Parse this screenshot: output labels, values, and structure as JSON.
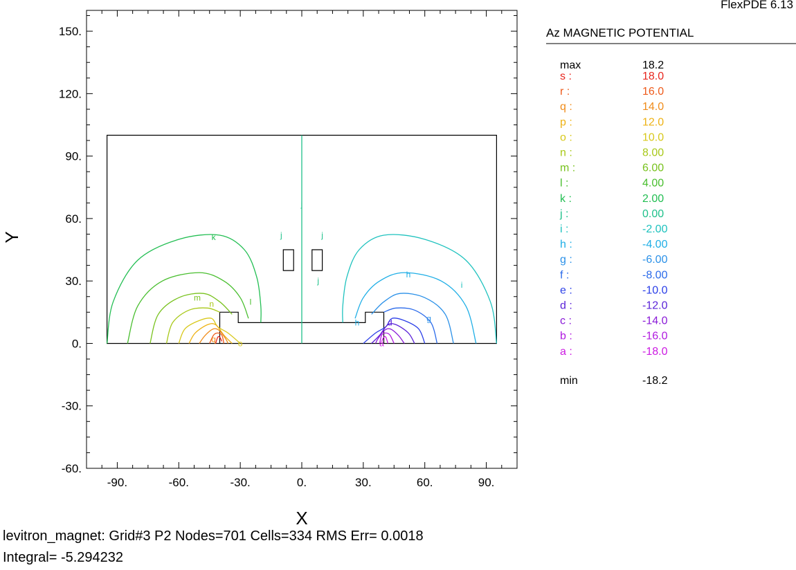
{
  "header": {
    "app_version": "FlexPDE 6.13"
  },
  "legend": {
    "title": "Az MAGNETIC POTENTIAL",
    "max_label": "max",
    "max_value": "18.2",
    "min_label": "min",
    "min_value": "-18.2",
    "entries": [
      {
        "key": "s",
        "value": "18.0",
        "color": "#e8261e"
      },
      {
        "key": "r",
        "value": "16.0",
        "color": "#ee5a1a"
      },
      {
        "key": "q",
        "value": "14.0",
        "color": "#f08c1a"
      },
      {
        "key": "p",
        "value": "12.0",
        "color": "#eeb214"
      },
      {
        "key": "o",
        "value": "10.0",
        "color": "#d8c81a"
      },
      {
        "key": "n",
        "value": "8.00",
        "color": "#a8c818"
      },
      {
        "key": "m",
        "value": "6.00",
        "color": "#78c21e"
      },
      {
        "key": "l",
        "value": "4.00",
        "color": "#48be2e"
      },
      {
        "key": "k",
        "value": "2.00",
        "color": "#22be52"
      },
      {
        "key": "j",
        "value": "0.00",
        "color": "#1ec08a"
      },
      {
        "key": "i",
        "value": "-2.00",
        "color": "#1ec2be"
      },
      {
        "key": "h",
        "value": "-4.00",
        "color": "#1eaee6"
      },
      {
        "key": "g",
        "value": "-6.00",
        "color": "#2a90e8"
      },
      {
        "key": "f",
        "value": "-8.00",
        "color": "#2a6aea"
      },
      {
        "key": "e",
        "value": "-10.0",
        "color": "#2a3ee8"
      },
      {
        "key": "d",
        "value": "-12.0",
        "color": "#5a22d8"
      },
      {
        "key": "c",
        "value": "-14.0",
        "color": "#8a1ad8"
      },
      {
        "key": "b",
        "value": "-16.0",
        "color": "#b01ae0"
      },
      {
        "key": "a",
        "value": "-18.0",
        "color": "#cc1ae2"
      }
    ]
  },
  "footer": {
    "line1": "levitron_magnet:  Grid#3  P2  Nodes=701 Cells=334 RMS Err= 0.0018",
    "line2": "Integral= -5.294232"
  },
  "chart_data": {
    "type": "contour",
    "title": "Az MAGNETIC POTENTIAL",
    "xlabel": "X",
    "ylabel": "Y",
    "xlim": [
      -105,
      105
    ],
    "ylim": [
      -60,
      160
    ],
    "x_ticks": [
      "-90.",
      "-60.",
      "-30.",
      "0.",
      "30.",
      "60.",
      "90."
    ],
    "y_ticks": [
      "150.",
      "120.",
      "90.",
      "60.",
      "30.",
      "0.",
      "-30.",
      "-60."
    ],
    "x_tick_values": [
      -90,
      -60,
      -30,
      0,
      30,
      60,
      90
    ],
    "y_tick_values": [
      150,
      120,
      90,
      60,
      30,
      0,
      -30,
      -60
    ],
    "domain_outline": [
      [
        -95,
        0
      ],
      [
        95,
        0
      ],
      [
        95,
        100
      ],
      [
        -95,
        100
      ]
    ],
    "magnet_outline": [
      [
        -40,
        0
      ],
      [
        -40,
        15
      ],
      [
        -31,
        15
      ],
      [
        -31,
        10
      ],
      [
        31,
        10
      ],
      [
        31,
        15
      ],
      [
        40,
        15
      ],
      [
        40,
        0
      ]
    ],
    "coils": [
      {
        "x": [
          -9,
          -4
        ],
        "y": [
          35,
          45
        ]
      },
      {
        "x": [
          5,
          10
        ],
        "y": [
          35,
          45
        ]
      }
    ],
    "contours": [
      {
        "key": "k",
        "value": 2.0,
        "color": "#22be52",
        "points": [
          [
            -95,
            0
          ],
          [
            -92,
            20
          ],
          [
            -80,
            40
          ],
          [
            -60,
            50
          ],
          [
            -40,
            52
          ],
          [
            -28,
            45
          ],
          [
            -22,
            32
          ],
          [
            -20,
            18
          ],
          [
            -20,
            10
          ]
        ]
      },
      {
        "key": "l",
        "value": 4.0,
        "color": "#48be2e",
        "points": [
          [
            -85,
            0
          ],
          [
            -80,
            18
          ],
          [
            -68,
            30
          ],
          [
            -50,
            34
          ],
          [
            -38,
            30
          ],
          [
            -30,
            22
          ],
          [
            -26,
            12
          ]
        ]
      },
      {
        "key": "m",
        "value": 6.0,
        "color": "#78c21e",
        "points": [
          [
            -74,
            0
          ],
          [
            -70,
            14
          ],
          [
            -60,
            22
          ],
          [
            -48,
            24
          ],
          [
            -40,
            20
          ],
          [
            -34,
            14
          ]
        ]
      },
      {
        "key": "n",
        "value": 8.0,
        "color": "#a8c818",
        "points": [
          [
            -66,
            0
          ],
          [
            -63,
            10
          ],
          [
            -55,
            16
          ],
          [
            -46,
            17
          ],
          [
            -40,
            15
          ]
        ]
      },
      {
        "key": "o",
        "value": 10.0,
        "color": "#d8c81a",
        "points": [
          [
            -60,
            0
          ],
          [
            -57,
            7
          ],
          [
            -50,
            11
          ],
          [
            -44,
            12
          ],
          [
            -41,
            8
          ],
          [
            -36,
            5
          ],
          [
            -30,
            0
          ]
        ]
      },
      {
        "key": "p",
        "value": 12.0,
        "color": "#eeb214",
        "points": [
          [
            -55,
            0
          ],
          [
            -52,
            5
          ],
          [
            -46,
            9
          ],
          [
            -42,
            9
          ],
          [
            -38,
            4
          ],
          [
            -34,
            0
          ]
        ]
      },
      {
        "key": "q",
        "value": 14.0,
        "color": "#f08c1a",
        "points": [
          [
            -50,
            0
          ],
          [
            -47,
            4
          ],
          [
            -43,
            7
          ],
          [
            -40,
            6
          ],
          [
            -37,
            2
          ],
          [
            -36,
            0
          ]
        ]
      },
      {
        "key": "r",
        "value": 16.0,
        "color": "#ee5a1a",
        "points": [
          [
            -45,
            0
          ],
          [
            -43,
            4
          ],
          [
            -41,
            5
          ],
          [
            -39,
            4
          ],
          [
            -38,
            0
          ]
        ]
      },
      {
        "key": "s",
        "value": 18.0,
        "color": "#e8261e",
        "points": [
          [
            -42,
            0
          ],
          [
            -41,
            3
          ],
          [
            -40,
            3
          ],
          [
            -39,
            1
          ]
        ]
      },
      {
        "key": "j",
        "value": 0.0,
        "color": "#1ec08a",
        "points": [
          [
            0,
            0
          ],
          [
            0,
            40
          ],
          [
            0,
            60
          ],
          [
            0,
            100
          ]
        ]
      },
      {
        "key": "i",
        "value": -2.0,
        "color": "#1ec2be",
        "points": [
          [
            95,
            0
          ],
          [
            92,
            20
          ],
          [
            80,
            40
          ],
          [
            60,
            50
          ],
          [
            40,
            52
          ],
          [
            28,
            45
          ],
          [
            22,
            32
          ],
          [
            20,
            18
          ],
          [
            20,
            10
          ]
        ]
      },
      {
        "key": "h",
        "value": -4.0,
        "color": "#1eaee6",
        "points": [
          [
            85,
            0
          ],
          [
            80,
            18
          ],
          [
            68,
            30
          ],
          [
            50,
            34
          ],
          [
            38,
            30
          ],
          [
            30,
            22
          ],
          [
            26,
            12
          ]
        ]
      },
      {
        "key": "g",
        "value": -6.0,
        "color": "#2a90e8",
        "points": [
          [
            74,
            0
          ],
          [
            70,
            14
          ],
          [
            60,
            22
          ],
          [
            48,
            24
          ],
          [
            40,
            20
          ],
          [
            34,
            14
          ]
        ]
      },
      {
        "key": "f",
        "value": -8.0,
        "color": "#2a6aea",
        "points": [
          [
            66,
            0
          ],
          [
            63,
            10
          ],
          [
            55,
            16
          ],
          [
            46,
            17
          ],
          [
            40,
            15
          ]
        ]
      },
      {
        "key": "e",
        "value": -10.0,
        "color": "#2a3ee8",
        "points": [
          [
            60,
            0
          ],
          [
            57,
            7
          ],
          [
            50,
            11
          ],
          [
            44,
            12
          ],
          [
            41,
            8
          ],
          [
            36,
            5
          ],
          [
            30,
            0
          ]
        ]
      },
      {
        "key": "d",
        "value": -12.0,
        "color": "#5a22d8",
        "points": [
          [
            55,
            0
          ],
          [
            52,
            5
          ],
          [
            46,
            9
          ],
          [
            42,
            9
          ],
          [
            38,
            4
          ],
          [
            34,
            0
          ]
        ]
      },
      {
        "key": "c",
        "value": -14.0,
        "color": "#8a1ad8",
        "points": [
          [
            50,
            0
          ],
          [
            47,
            4
          ],
          [
            43,
            7
          ],
          [
            40,
            6
          ],
          [
            37,
            2
          ],
          [
            36,
            0
          ]
        ]
      },
      {
        "key": "b",
        "value": -16.0,
        "color": "#b01ae0",
        "points": [
          [
            45,
            0
          ],
          [
            43,
            4
          ],
          [
            41,
            5
          ],
          [
            39,
            4
          ],
          [
            38,
            0
          ]
        ]
      },
      {
        "key": "a",
        "value": -18.0,
        "color": "#cc1ae2",
        "points": [
          [
            42,
            0
          ],
          [
            41,
            3
          ],
          [
            40,
            3
          ],
          [
            39,
            1
          ]
        ]
      }
    ],
    "contour_labels": [
      {
        "key": "k",
        "x": -43,
        "y": 51,
        "color": "#22be52"
      },
      {
        "key": "l",
        "x": -25,
        "y": 20,
        "color": "#48be2e"
      },
      {
        "key": "m",
        "x": -51,
        "y": 22,
        "color": "#78c21e"
      },
      {
        "key": "n",
        "x": -44,
        "y": 19,
        "color": "#a8c818"
      },
      {
        "key": "q",
        "x": -43,
        "y": 2,
        "color": "#f08c1a"
      },
      {
        "key": "o",
        "x": -30,
        "y": 0,
        "color": "#d8c81a"
      },
      {
        "key": "j",
        "x": -10,
        "y": 52,
        "color": "#1ec08a"
      },
      {
        "key": "j",
        "x": 10,
        "y": 52,
        "color": "#1ec08a"
      },
      {
        "key": "j",
        "x": 0,
        "y": 67,
        "color": "#1ec08a"
      },
      {
        "key": "j",
        "x": 8,
        "y": 30,
        "color": "#1ec08a"
      },
      {
        "key": "h",
        "x": 52,
        "y": 33,
        "color": "#1eaee6"
      },
      {
        "key": "i",
        "x": 78,
        "y": 28,
        "color": "#1ec2be"
      },
      {
        "key": "g",
        "x": 62,
        "y": 12,
        "color": "#2a90e8"
      },
      {
        "key": "h",
        "x": 27,
        "y": 10,
        "color": "#1eaee6"
      },
      {
        "key": "d",
        "x": 43,
        "y": 10,
        "color": "#5a22d8"
      },
      {
        "key": "a",
        "x": 39,
        "y": 0,
        "color": "#cc1ae2"
      }
    ]
  }
}
